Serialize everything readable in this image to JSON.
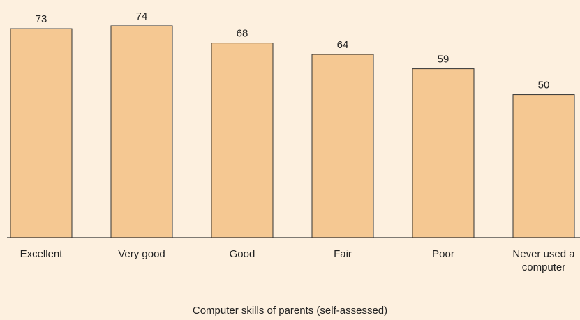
{
  "chart_data": {
    "type": "bar",
    "title": "Computer skills of parents (self-assessed)",
    "categories": [
      "Excellent",
      "Very good",
      "Good",
      "Fair",
      "Poor",
      "Never used a computer"
    ],
    "values": [
      73,
      74,
      68,
      64,
      59,
      50
    ],
    "color": "#f5c892",
    "ylim": [
      0,
      83
    ]
  }
}
